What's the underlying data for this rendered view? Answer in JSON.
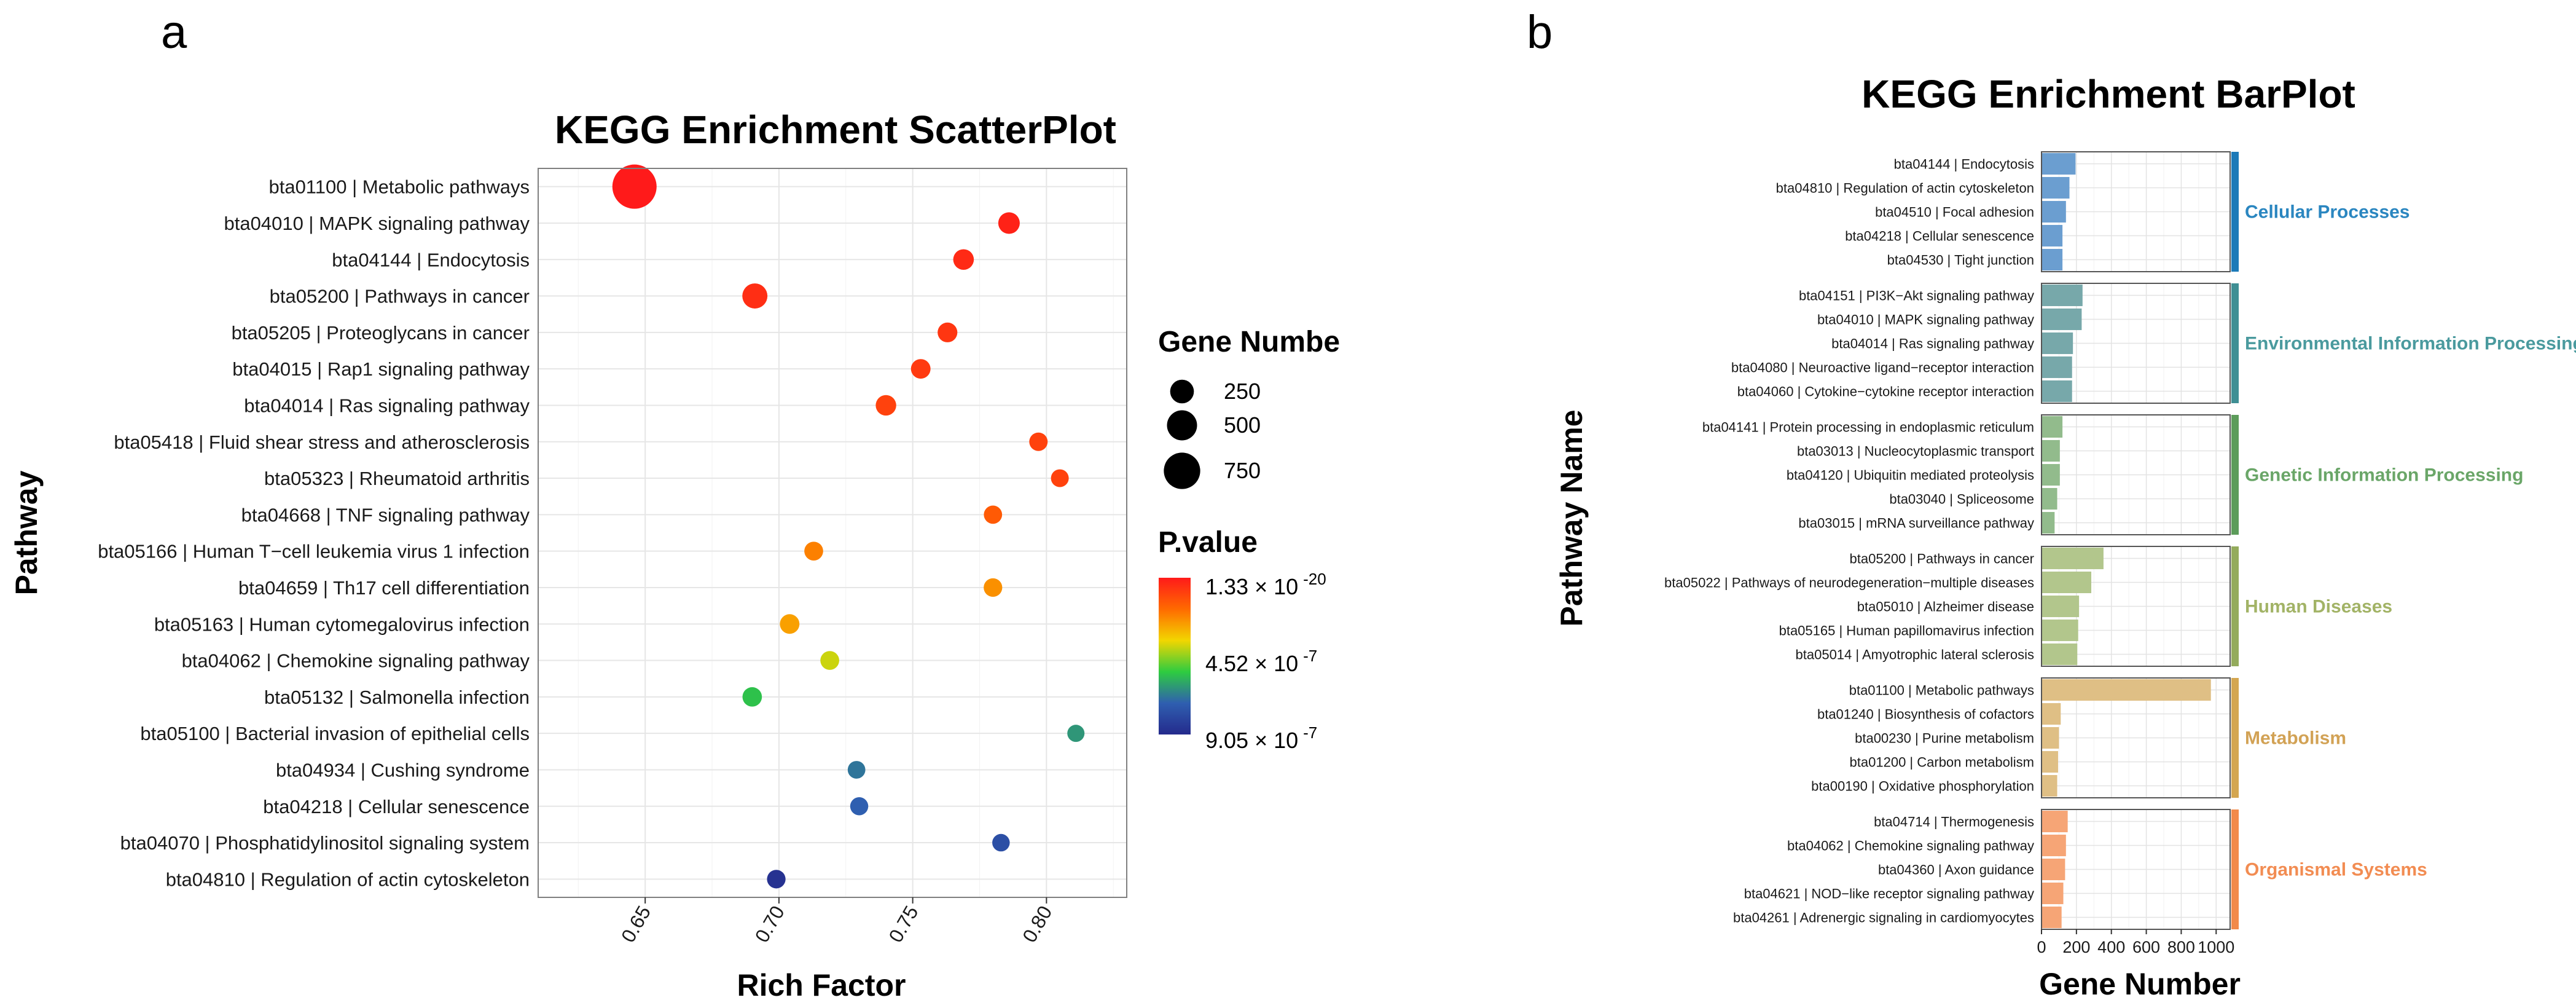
{
  "panel_labels": [
    "a",
    "b"
  ],
  "chart_data": [
    {
      "type": "scatter",
      "title": "KEGG Enrichment ScatterPlot",
      "xlabel": "Rich Factor",
      "ylabel": "Pathway",
      "xlim": [
        0.61,
        0.83
      ],
      "xticks": [
        0.65,
        0.7,
        0.75,
        0.8
      ],
      "xtick_labels": [
        "0.65",
        "0.70",
        "0.75",
        "0.80"
      ],
      "grid": true,
      "pathways": [
        "bta01100 | Metabolic pathways",
        "bta04010 | MAPK signaling pathway",
        "bta04144 | Endocytosis",
        "bta05200 | Pathways in cancer",
        "bta05205 | Proteoglycans in cancer",
        "bta04015 | Rap1 signaling pathway",
        "bta04014 | Ras signaling pathway",
        "bta05418 | Fluid shear stress and atherosclerosis",
        "bta05323 | Rheumatoid arthritis",
        "bta04668 | TNF signaling pathway",
        "bta05166 | Human T−cell leukemia virus 1 infection",
        "bta04659 | Th17 cell differentiation",
        "bta05163 | Human cytomegalovirus infection",
        "bta04062 | Chemokine signaling pathway",
        "bta05132 | Salmonella infection",
        "bta05100 | Bacterial invasion of epithelial cells",
        "bta04934 | Cushing syndrome",
        "bta04218 | Cellular senescence",
        "bta04070 | Phosphatidylinositol signaling system",
        "bta04810 | Regulation of actin cytoskeleton"
      ],
      "rich_factor": [
        0.646,
        0.786,
        0.769,
        0.691,
        0.763,
        0.753,
        0.74,
        0.797,
        0.805,
        0.78,
        0.713,
        0.78,
        0.704,
        0.719,
        0.69,
        0.811,
        0.729,
        0.73,
        0.783,
        0.699
      ],
      "gene_number": [
        990,
        230,
        200,
        350,
        170,
        165,
        195,
        125,
        105,
        120,
        140,
        130,
        165,
        140,
        160,
        85,
        100,
        115,
        95,
        130
      ],
      "pvalue_color_pos": [
        0.0,
        0.02,
        0.04,
        0.05,
        0.07,
        0.08,
        0.1,
        0.1,
        0.1,
        0.16,
        0.24,
        0.27,
        0.3,
        0.44,
        0.62,
        0.7,
        0.76,
        0.8,
        0.86,
        0.97
      ],
      "size_legend": {
        "title": "Gene Numbe",
        "values": [
          250,
          500,
          750
        ],
        "labels": [
          "250",
          "500",
          "750"
        ]
      },
      "color_legend": {
        "title": "P.value",
        "labels": [
          {
            "mantissa": "1.33 × 10",
            "exp": "-20"
          },
          {
            "mantissa": "4.52 × 10",
            "exp": "-7"
          },
          {
            "mantissa": "9.05 × 10",
            "exp": "-7"
          }
        ],
        "colors": [
          "#ff1a1a",
          "#ff6a00",
          "#f2d600",
          "#2ecc40",
          "#2f5fb0",
          "#242a8c"
        ]
      }
    },
    {
      "type": "bar",
      "orientation": "horizontal",
      "title": "KEGG Enrichment BarPlot",
      "xlabel": "Gene Number",
      "ylabel": "Pathway Name",
      "xlim": [
        0,
        1080
      ],
      "xticks": [
        0,
        200,
        400,
        600,
        800,
        1000
      ],
      "xtick_labels": [
        "0",
        "200",
        "400",
        "600",
        "800",
        "1000"
      ],
      "grid": true,
      "groups": [
        {
          "name": "Cellular Processes",
          "color": "#6b9ed0",
          "strip_color": "#1c7ab8",
          "label_color": "#2a86c0",
          "categories": [
            "bta04144 | Endocytosis",
            "bta04810 | Regulation of actin cytoskeleton",
            "bta04510 | Focal adhesion",
            "bta04218 | Cellular senescence",
            "bta04530 | Tight junction"
          ],
          "values": [
            195,
            160,
            140,
            120,
            120
          ]
        },
        {
          "name": "Environmental Information Processing",
          "color": "#77a8aa",
          "strip_color": "#3f8f94",
          "label_color": "#4a9a9e",
          "categories": [
            "bta04151 | PI3K−Akt signaling pathway",
            "bta04010 | MAPK signaling pathway",
            "bta04014 | Ras signaling pathway",
            "bta04080 | Neuroactive ligand−receptor interaction",
            "bta04060 | Cytokine−cytokine receptor interaction"
          ],
          "values": [
            235,
            230,
            180,
            175,
            175
          ]
        },
        {
          "name": "Genetic Information Processing",
          "color": "#92bb8c",
          "strip_color": "#5c9c5a",
          "label_color": "#6aa668",
          "categories": [
            "bta04141 | Protein processing in endoplasmic reticulum",
            "bta03013 | Nucleocytoplasmic transport",
            "bta04120 | Ubiquitin mediated proteolysis",
            "bta03040 | Spliceosome",
            "bta03015 | mRNA surveillance pathway"
          ],
          "values": [
            120,
            105,
            105,
            90,
            75
          ]
        },
        {
          "name": "Human Diseases",
          "color": "#b2c68c",
          "strip_color": "#94ab5c",
          "label_color": "#a2b366",
          "categories": [
            "bta05200 | Pathways in cancer",
            "bta05022 | Pathways of neurodegeneration−multiple diseases",
            "bta05010 | Alzheimer disease",
            "bta05165 | Human papillomavirus infection",
            "bta05014 | Amyotrophic lateral sclerosis"
          ],
          "values": [
            355,
            285,
            215,
            210,
            205
          ]
        },
        {
          "name": "Metabolism",
          "color": "#dfbf85",
          "strip_color": "#d4a650",
          "label_color": "#d2a255",
          "categories": [
            "bta01100 | Metabolic pathways",
            "bta01240 | Biosynthesis of cofactors",
            "bta00230 | Purine metabolism",
            "bta01200 | Carbon metabolism",
            "bta00190 | Oxidative phosphorylation"
          ],
          "values": [
            970,
            110,
            100,
            95,
            90
          ]
        },
        {
          "name": "Organismal Systems",
          "color": "#f6a576",
          "strip_color": "#f28a4a",
          "label_color": "#f28c52",
          "categories": [
            "bta04714 | Thermogenesis",
            "bta04062 | Chemokine signaling pathway",
            "bta04360 | Axon guidance",
            "bta04621 | NOD−like receptor signaling pathway",
            "bta04261 | Adrenergic signaling in cardiomyocytes"
          ],
          "values": [
            150,
            140,
            135,
            125,
            115
          ]
        }
      ]
    }
  ]
}
